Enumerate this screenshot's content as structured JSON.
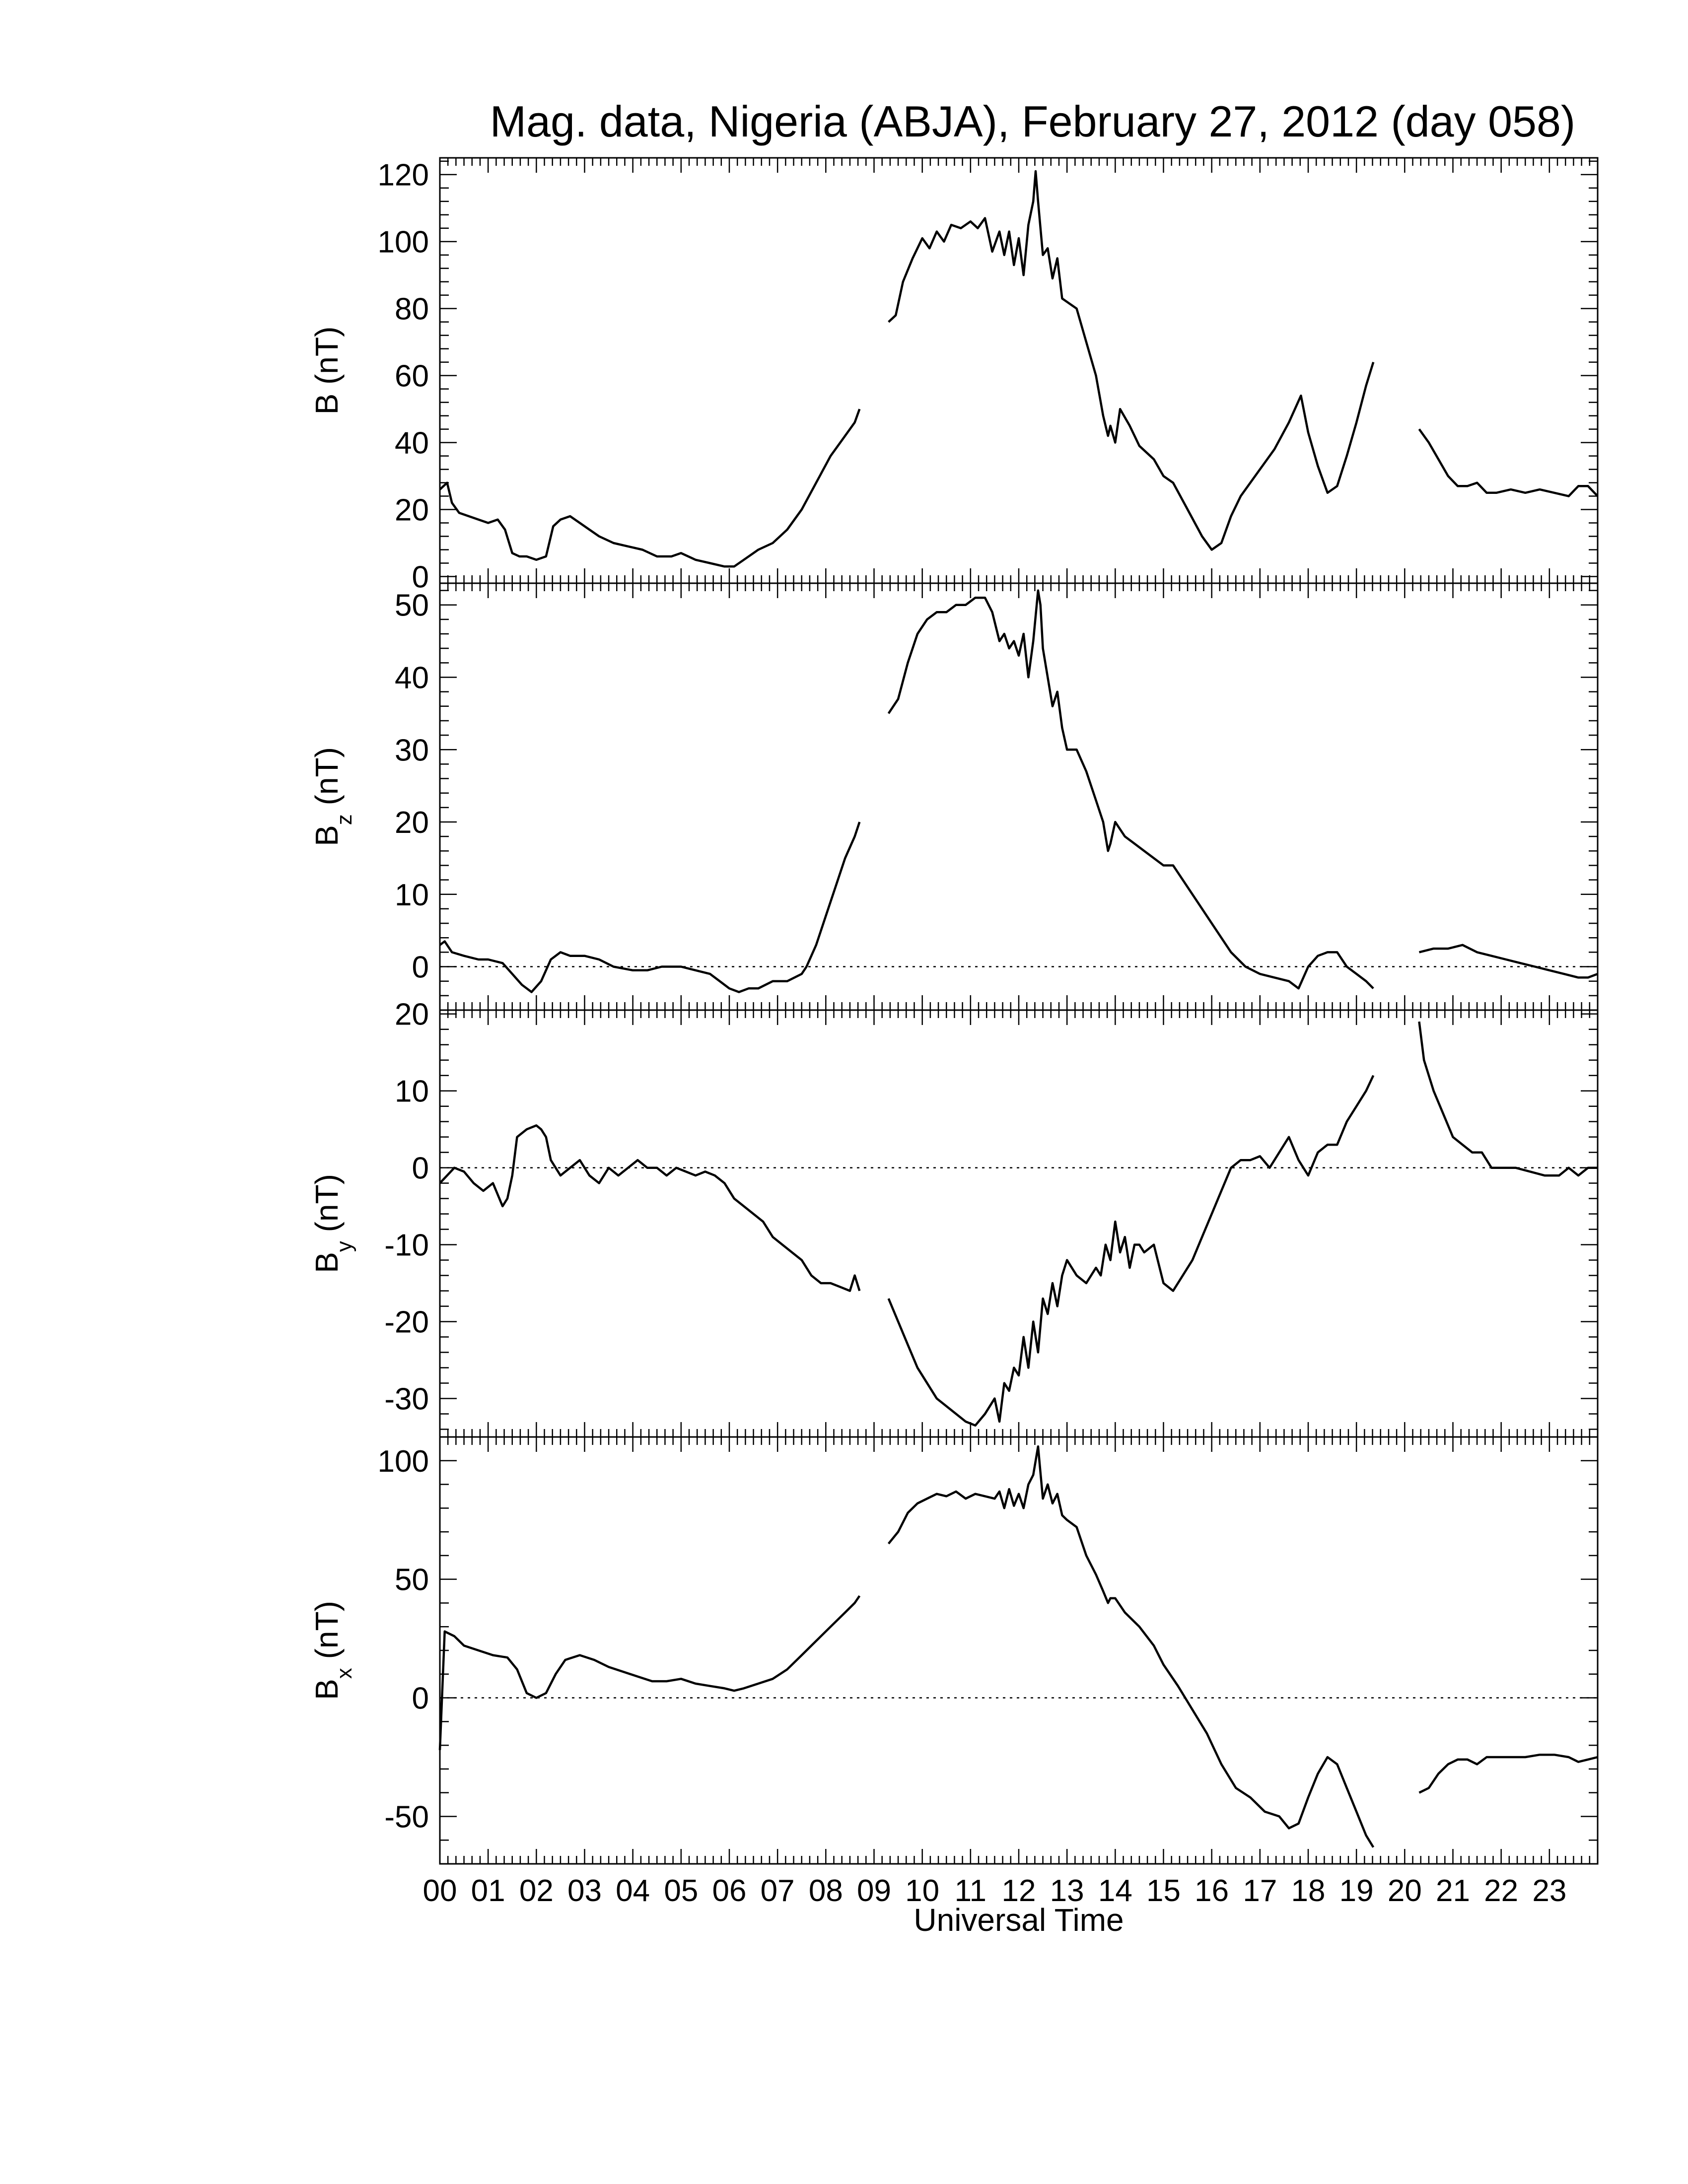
{
  "figure": {
    "title": "Mag. data, Nigeria (ABJA), February 27, 2012 (day 058)",
    "xlabel": "Universal Time"
  },
  "chart_data": [
    {
      "type": "line",
      "ylabel": "B (nT)",
      "ylabel_main": "B",
      "ylabel_sub": "",
      "ylabel_unit": " (nT)",
      "xlim": [
        0,
        24
      ],
      "ylim": [
        -2,
        125
      ],
      "yticks": [
        0,
        20,
        40,
        60,
        80,
        100,
        120
      ],
      "zero_line": false,
      "series": [
        {
          "x": [
            0.0,
            0.15,
            0.25,
            0.4,
            0.6,
            0.8,
            1.0,
            1.2,
            1.35,
            1.5,
            1.65,
            1.8,
            2.0,
            2.2,
            2.35,
            2.5,
            2.7,
            2.9,
            3.1,
            3.3,
            3.6,
            3.9,
            4.2,
            4.5,
            4.8,
            5.0,
            5.3,
            5.6,
            5.9,
            6.1,
            6.3,
            6.6,
            6.9,
            7.2,
            7.5,
            7.8,
            8.1,
            8.4,
            8.6,
            8.7
          ],
          "y": [
            26,
            28,
            22,
            19,
            18,
            17,
            16,
            17,
            14,
            7,
            6,
            6,
            5,
            6,
            15,
            17,
            18,
            16,
            14,
            12,
            10,
            9,
            8,
            6,
            6,
            7,
            5,
            4,
            3,
            3,
            5,
            8,
            10,
            14,
            20,
            28,
            36,
            42,
            46,
            50
          ]
        },
        {
          "x": [
            9.3,
            9.45,
            9.6,
            9.8,
            10.0,
            10.15,
            10.3,
            10.45,
            10.6,
            10.8,
            11.0,
            11.15,
            11.3,
            11.45,
            11.6,
            11.7,
            11.8,
            11.9,
            12.0,
            12.1,
            12.2,
            12.3,
            12.35,
            12.4,
            12.5,
            12.6,
            12.7,
            12.8,
            12.9,
            13.0,
            13.2,
            13.4,
            13.6,
            13.75,
            13.85,
            13.9,
            14.0,
            14.1,
            14.3,
            14.5,
            14.8,
            15.0,
            15.2,
            15.5,
            15.8,
            16.0,
            16.2,
            16.4,
            16.6,
            16.8,
            17.0,
            17.3,
            17.6,
            17.85,
            18.0,
            18.2,
            18.4,
            18.6,
            18.8,
            19.0,
            19.2,
            19.35
          ],
          "y": [
            76,
            78,
            88,
            95,
            101,
            98,
            103,
            100,
            105,
            104,
            106,
            104,
            107,
            97,
            103,
            96,
            103,
            93,
            101,
            90,
            105,
            112,
            121,
            112,
            96,
            98,
            89,
            95,
            83,
            82,
            80,
            70,
            60,
            48,
            42,
            45,
            40,
            50,
            45,
            39,
            35,
            30,
            28,
            20,
            12,
            8,
            10,
            18,
            24,
            28,
            32,
            38,
            46,
            54,
            43,
            33,
            25,
            27,
            36,
            46,
            57,
            64
          ]
        },
        {
          "x": [
            20.3,
            20.5,
            20.7,
            20.9,
            21.1,
            21.3,
            21.5,
            21.7,
            21.9,
            22.2,
            22.5,
            22.8,
            23.1,
            23.4,
            23.6,
            23.8,
            24.0
          ],
          "y": [
            44,
            40,
            35,
            30,
            27,
            27,
            28,
            25,
            25,
            26,
            25,
            26,
            25,
            24,
            27,
            27,
            24
          ]
        }
      ]
    },
    {
      "type": "line",
      "ylabel": "Bz (nT)",
      "ylabel_main": "B",
      "ylabel_sub": "z",
      "ylabel_unit": " (nT)",
      "xlim": [
        0,
        24
      ],
      "ylim": [
        -6,
        53
      ],
      "yticks": [
        0,
        10,
        20,
        30,
        40,
        50
      ],
      "zero_line": true,
      "series": [
        {
          "x": [
            0.0,
            0.1,
            0.25,
            0.5,
            0.8,
            1.0,
            1.3,
            1.5,
            1.7,
            1.9,
            2.1,
            2.3,
            2.5,
            2.7,
            3.0,
            3.3,
            3.6,
            4.0,
            4.3,
            4.6,
            5.0,
            5.3,
            5.6,
            5.8,
            6.0,
            6.2,
            6.4,
            6.6,
            6.9,
            7.2,
            7.5,
            7.6,
            7.8,
            8.0,
            8.2,
            8.4,
            8.6,
            8.7
          ],
          "y": [
            3,
            3.5,
            2,
            1.5,
            1,
            1,
            0.5,
            -1,
            -2.5,
            -3.5,
            -2,
            1,
            2,
            1.5,
            1.5,
            1,
            0,
            -0.5,
            -0.5,
            0,
            0,
            -0.5,
            -1,
            -2,
            -3,
            -3.5,
            -3,
            -3,
            -2,
            -2,
            -1,
            0,
            3,
            7,
            11,
            15,
            18,
            20
          ]
        },
        {
          "x": [
            9.3,
            9.5,
            9.7,
            9.9,
            10.1,
            10.3,
            10.5,
            10.7,
            10.9,
            11.1,
            11.3,
            11.45,
            11.6,
            11.7,
            11.8,
            11.9,
            12.0,
            12.1,
            12.2,
            12.3,
            12.4,
            12.45,
            12.5,
            12.6,
            12.7,
            12.8,
            12.9,
            13.0,
            13.2,
            13.4,
            13.6,
            13.75,
            13.85,
            13.9,
            14.0,
            14.2,
            14.4,
            14.6,
            14.8,
            15.0,
            15.2,
            15.5,
            15.8,
            16.1,
            16.4,
            16.7,
            17.0,
            17.3,
            17.6,
            17.8,
            18.0,
            18.2,
            18.4,
            18.6,
            18.8,
            19.0,
            19.2,
            19.35
          ],
          "y": [
            35,
            37,
            42,
            46,
            48,
            49,
            49,
            50,
            50,
            51,
            51,
            49,
            45,
            46,
            44,
            45,
            43,
            46,
            40,
            45,
            52,
            50,
            44,
            40,
            36,
            38,
            33,
            30,
            30,
            27,
            23,
            20,
            16,
            17,
            20,
            18,
            17,
            16,
            15,
            14,
            14,
            11,
            8,
            5,
            2,
            0,
            -1,
            -1.5,
            -2,
            -3,
            0,
            1.5,
            2,
            2,
            0,
            -1,
            -2,
            -3
          ]
        },
        {
          "x": [
            20.3,
            20.6,
            20.9,
            21.2,
            21.5,
            21.8,
            22.1,
            22.4,
            22.7,
            23.0,
            23.3,
            23.6,
            23.8,
            24.0
          ],
          "y": [
            2,
            2.5,
            2.5,
            3,
            2,
            1.5,
            1,
            0.5,
            0,
            -0.5,
            -1,
            -1.5,
            -1.5,
            -1
          ]
        }
      ]
    },
    {
      "type": "line",
      "ylabel": "By (nT)",
      "ylabel_main": "B",
      "ylabel_sub": "y",
      "ylabel_unit": " (nT)",
      "xlim": [
        0,
        24
      ],
      "ylim": [
        -35,
        20.5
      ],
      "yticks": [
        -30,
        -20,
        -10,
        0,
        10,
        20
      ],
      "zero_line": true,
      "series": [
        {
          "x": [
            0.0,
            0.15,
            0.3,
            0.5,
            0.7,
            0.9,
            1.1,
            1.3,
            1.4,
            1.5,
            1.6,
            1.8,
            2.0,
            2.1,
            2.2,
            2.3,
            2.5,
            2.7,
            2.9,
            3.1,
            3.3,
            3.5,
            3.7,
            3.9,
            4.1,
            4.3,
            4.5,
            4.7,
            4.9,
            5.1,
            5.3,
            5.5,
            5.7,
            5.9,
            6.1,
            6.3,
            6.5,
            6.7,
            6.9,
            7.1,
            7.3,
            7.5,
            7.7,
            7.9,
            8.1,
            8.3,
            8.5,
            8.6,
            8.7
          ],
          "y": [
            -2,
            -1,
            0,
            -0.5,
            -2,
            -3,
            -2,
            -5,
            -4,
            -1,
            4,
            5,
            5.5,
            5,
            4,
            1,
            -1,
            0,
            1,
            -1,
            -2,
            0,
            -1,
            0,
            1,
            0,
            0,
            -1,
            0,
            -0.5,
            -1,
            -0.5,
            -1,
            -2,
            -4,
            -5,
            -6,
            -7,
            -9,
            -10,
            -11,
            -12,
            -14,
            -15,
            -15,
            -15.5,
            -16,
            -14,
            -16
          ]
        },
        {
          "x": [
            9.3,
            9.5,
            9.7,
            9.9,
            10.1,
            10.3,
            10.5,
            10.7,
            10.9,
            11.1,
            11.3,
            11.5,
            11.6,
            11.7,
            11.8,
            11.9,
            12.0,
            12.1,
            12.2,
            12.3,
            12.4,
            12.5,
            12.6,
            12.7,
            12.8,
            12.9,
            13.0,
            13.2,
            13.4,
            13.6,
            13.7,
            13.8,
            13.9,
            14.0,
            14.1,
            14.2,
            14.3,
            14.4,
            14.5,
            14.6,
            14.8,
            15.0,
            15.2,
            15.4,
            15.6,
            15.8,
            16.0,
            16.2,
            16.4,
            16.6,
            16.8,
            17.0,
            17.2,
            17.4,
            17.6,
            17.8,
            18.0,
            18.2,
            18.4,
            18.6,
            18.8,
            19.0,
            19.2,
            19.35
          ],
          "y": [
            -17,
            -20,
            -23,
            -26,
            -28,
            -30,
            -31,
            -32,
            -33,
            -33.5,
            -32,
            -30,
            -33,
            -28,
            -29,
            -26,
            -27,
            -22,
            -26,
            -20,
            -24,
            -17,
            -19,
            -15,
            -18,
            -14,
            -12,
            -14,
            -15,
            -13,
            -14,
            -10,
            -12,
            -7,
            -11,
            -9,
            -13,
            -10,
            -10,
            -11,
            -10,
            -15,
            -16,
            -14,
            -12,
            -9,
            -6,
            -3,
            0,
            1,
            1,
            1.5,
            0,
            2,
            4,
            1,
            -1,
            2,
            3,
            3,
            6,
            8,
            10,
            12
          ]
        },
        {
          "x": [
            20.3,
            20.4,
            20.6,
            20.8,
            21.0,
            21.2,
            21.4,
            21.6,
            21.8,
            22.0,
            22.3,
            22.6,
            22.9,
            23.2,
            23.4,
            23.6,
            23.8,
            24.0
          ],
          "y": [
            19,
            14,
            10,
            7,
            4,
            3,
            2,
            2,
            0,
            0,
            0,
            -0.5,
            -1,
            -1,
            0,
            -1,
            0,
            0
          ]
        }
      ]
    },
    {
      "type": "line",
      "ylabel": "Bx (nT)",
      "ylabel_main": "B",
      "ylabel_sub": "x",
      "ylabel_unit": " (nT)",
      "xlim": [
        0,
        24
      ],
      "ylim": [
        -70,
        110
      ],
      "yticks": [
        -50,
        0,
        50,
        100
      ],
      "zero_line": true,
      "series": [
        {
          "x": [
            0.0,
            0.1,
            0.3,
            0.5,
            0.8,
            1.1,
            1.4,
            1.6,
            1.8,
            2.0,
            2.2,
            2.4,
            2.6,
            2.9,
            3.2,
            3.5,
            3.8,
            4.1,
            4.4,
            4.7,
            5.0,
            5.3,
            5.6,
            5.9,
            6.1,
            6.3,
            6.6,
            6.9,
            7.2,
            7.5,
            7.8,
            8.1,
            8.4,
            8.6,
            8.7
          ],
          "y": [
            -22,
            28,
            26,
            22,
            20,
            18,
            17,
            12,
            2,
            0,
            2,
            10,
            16,
            18,
            16,
            13,
            11,
            9,
            7,
            7,
            8,
            6,
            5,
            4,
            3,
            4,
            6,
            8,
            12,
            18,
            24,
            30,
            36,
            40,
            43
          ]
        },
        {
          "x": [
            9.3,
            9.5,
            9.7,
            9.9,
            10.1,
            10.3,
            10.5,
            10.7,
            10.9,
            11.1,
            11.3,
            11.5,
            11.6,
            11.7,
            11.8,
            11.9,
            12.0,
            12.1,
            12.2,
            12.3,
            12.4,
            12.45,
            12.5,
            12.6,
            12.7,
            12.8,
            12.9,
            13.0,
            13.2,
            13.4,
            13.6,
            13.75,
            13.85,
            13.9,
            14.0,
            14.2,
            14.5,
            14.8,
            15.0,
            15.3,
            15.6,
            15.9,
            16.2,
            16.5,
            16.8,
            17.1,
            17.4,
            17.6,
            17.8,
            18.0,
            18.2,
            18.4,
            18.6,
            18.8,
            19.0,
            19.2,
            19.35
          ],
          "y": [
            65,
            70,
            78,
            82,
            84,
            86,
            85,
            87,
            84,
            86,
            85,
            84,
            87,
            80,
            88,
            81,
            86,
            80,
            90,
            94,
            106,
            95,
            84,
            90,
            82,
            86,
            77,
            75,
            72,
            60,
            52,
            45,
            40,
            42,
            42,
            36,
            30,
            22,
            14,
            5,
            -5,
            -15,
            -28,
            -38,
            -42,
            -48,
            -50,
            -55,
            -53,
            -42,
            -32,
            -25,
            -28,
            -38,
            -48,
            -58,
            -63
          ]
        },
        {
          "x": [
            20.3,
            20.5,
            20.7,
            20.9,
            21.1,
            21.3,
            21.5,
            21.7,
            21.9,
            22.2,
            22.5,
            22.8,
            23.1,
            23.4,
            23.6,
            23.8,
            24.0
          ],
          "y": [
            -40,
            -38,
            -32,
            -28,
            -26,
            -26,
            -28,
            -25,
            -25,
            -25,
            -25,
            -24,
            -24,
            -25,
            -27,
            -26,
            -25
          ]
        }
      ]
    }
  ],
  "x_ticks": [
    "00",
    "01",
    "02",
    "03",
    "04",
    "05",
    "06",
    "07",
    "08",
    "09",
    "10",
    "11",
    "12",
    "13",
    "14",
    "15",
    "16",
    "17",
    "18",
    "19",
    "20",
    "21",
    "22",
    "23"
  ]
}
